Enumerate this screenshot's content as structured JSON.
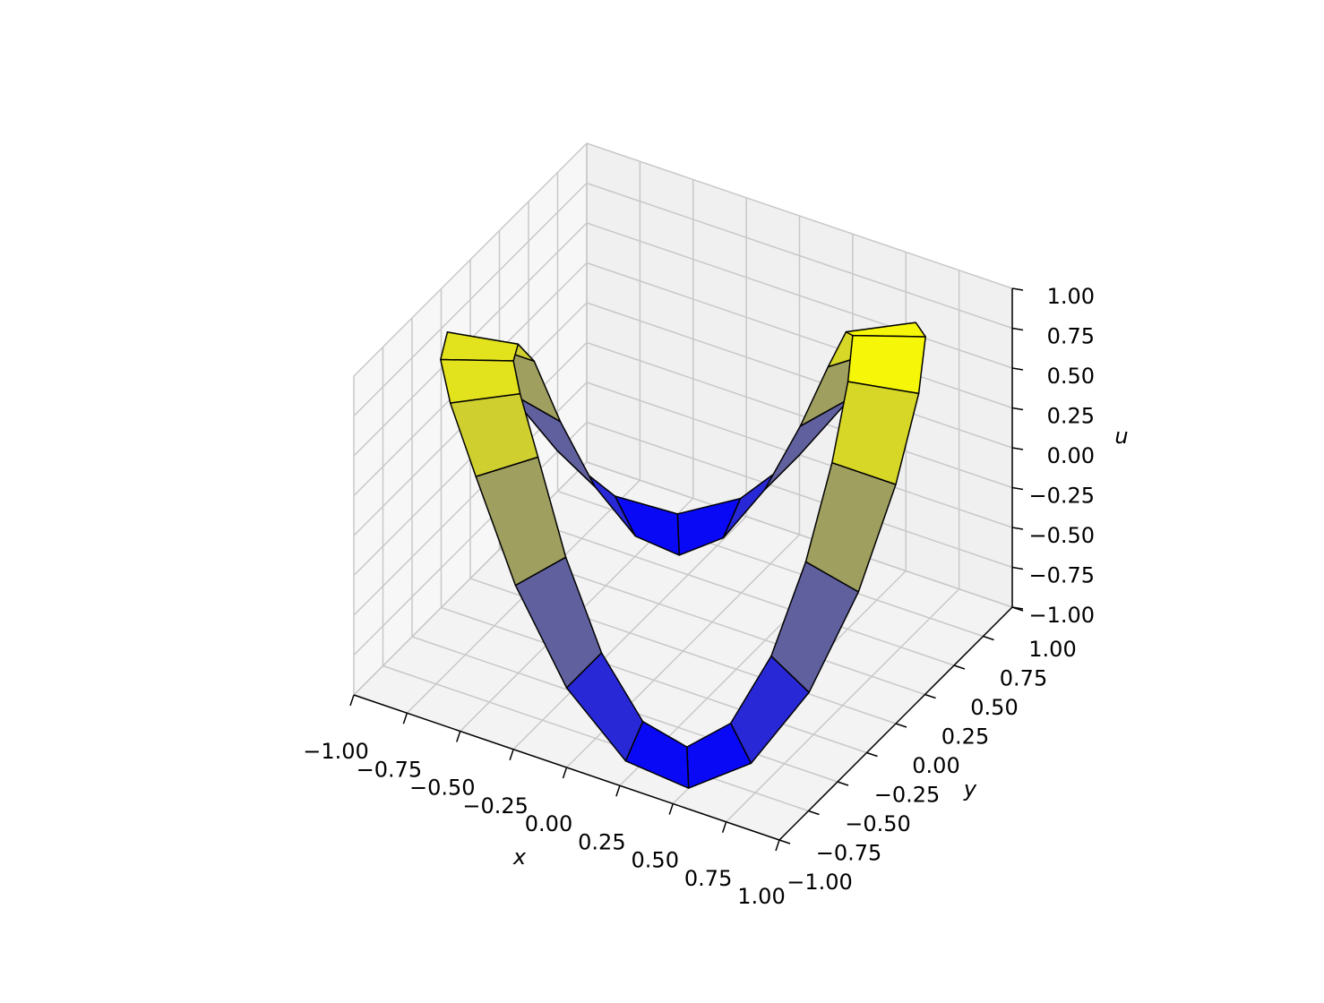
{
  "chart_data": {
    "type": "surface3d",
    "xlabel": "x",
    "ylabel": "y",
    "zlabel": "u",
    "xlim": [
      -1,
      1
    ],
    "ylim": [
      -1,
      1
    ],
    "zlim": [
      -1,
      1
    ],
    "xticks": [
      {
        "value": -1,
        "label": "−1.00"
      },
      {
        "value": -0.75,
        "label": "−0.75"
      },
      {
        "value": -0.5,
        "label": "−0.50"
      },
      {
        "value": -0.25,
        "label": "−0.25"
      },
      {
        "value": 0,
        "label": "0.00"
      },
      {
        "value": 0.25,
        "label": "0.25"
      },
      {
        "value": 0.5,
        "label": "0.50"
      },
      {
        "value": 0.75,
        "label": "0.75"
      },
      {
        "value": 1,
        "label": "1.00"
      }
    ],
    "yticks": [
      {
        "value": -1,
        "label": "−1.00"
      },
      {
        "value": -0.75,
        "label": "−0.75"
      },
      {
        "value": -0.5,
        "label": "−0.50"
      },
      {
        "value": -0.25,
        "label": "−0.25"
      },
      {
        "value": 0,
        "label": "0.00"
      },
      {
        "value": 0.25,
        "label": "0.25"
      },
      {
        "value": 0.5,
        "label": "0.50"
      },
      {
        "value": 0.75,
        "label": "0.75"
      },
      {
        "value": 1,
        "label": "1.00"
      }
    ],
    "zticks": [
      {
        "value": -1,
        "label": "−1.00"
      },
      {
        "value": -0.75,
        "label": "−0.75"
      },
      {
        "value": -0.5,
        "label": "−0.50"
      },
      {
        "value": -0.25,
        "label": "−0.25"
      },
      {
        "value": 0,
        "label": "0.00"
      },
      {
        "value": 0.25,
        "label": "0.25"
      },
      {
        "value": 0.5,
        "label": "0.50"
      },
      {
        "value": 0.75,
        "label": "0.75"
      },
      {
        "value": 1,
        "label": "1.00"
      }
    ],
    "grid": true,
    "colormap": [
      "#0000ff",
      "#ffff00"
    ],
    "edgecolor": "#000000",
    "x": [
      [
        1,
        0.966,
        0.866,
        0.707,
        0.5,
        0.259,
        0,
        -0.259,
        -0.5,
        -0.707,
        -0.866,
        -0.966,
        -1,
        -0.966,
        -0.866,
        -0.707,
        -0.5,
        -0.259,
        0,
        0.259,
        0.5,
        0.707,
        0.866,
        0.966
      ],
      [
        0.7,
        0.676,
        0.606,
        0.495,
        0.35,
        0.181,
        0,
        -0.181,
        -0.35,
        -0.495,
        -0.606,
        -0.676,
        -0.7,
        -0.676,
        -0.606,
        -0.495,
        -0.35,
        -0.181,
        0,
        0.181,
        0.35,
        0.495,
        0.606,
        0.676
      ]
    ],
    "y": [
      [
        0,
        0.259,
        0.5,
        0.707,
        0.866,
        0.966,
        1,
        0.966,
        0.866,
        0.707,
        0.5,
        0.259,
        0,
        -0.259,
        -0.5,
        -0.707,
        -0.866,
        -0.966,
        -1,
        -0.966,
        -0.866,
        -0.707,
        -0.5,
        -0.259
      ],
      [
        0,
        0.181,
        0.35,
        0.495,
        0.606,
        0.676,
        0.7,
        0.676,
        0.606,
        0.495,
        0.35,
        0.181,
        0,
        -0.181,
        -0.35,
        -0.495,
        -0.606,
        -0.676,
        -0.7,
        -0.676,
        -0.606,
        -0.495,
        -0.35,
        -0.181
      ]
    ],
    "z": [
      [
        0.5,
        0.866,
        1,
        0.866,
        0.5,
        0,
        -0.5,
        -0.866,
        -1,
        -0.866,
        -0.5,
        0,
        0.5,
        0.75,
        0.8,
        0.75,
        0.5,
        0,
        -0.5,
        -0.866,
        -1,
        -0.866,
        -0.5,
        0
      ],
      [
        0.5,
        0.866,
        1,
        0.866,
        0.5,
        0,
        -0.5,
        -0.866,
        -1,
        -0.866,
        -0.5,
        0,
        0.5,
        0.75,
        0.8,
        0.75,
        0.5,
        0,
        -0.5,
        -0.866,
        -1,
        -0.866,
        -0.5,
        0
      ]
    ]
  }
}
